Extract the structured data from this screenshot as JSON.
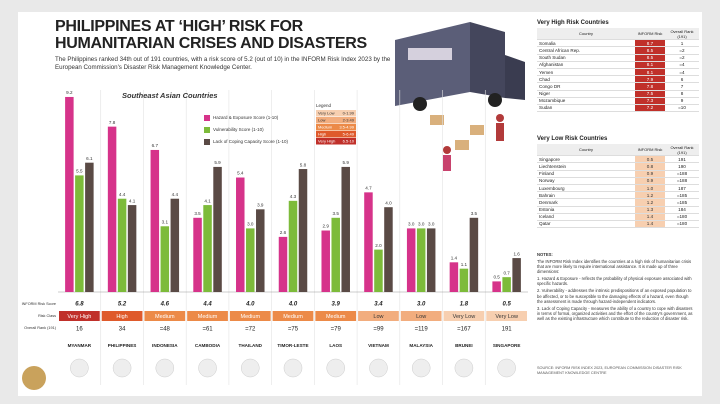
{
  "title_lines": [
    "PHILIPPINES AT ‘HIGH’ RISK FOR",
    "HUMANITARIAN CRISES AND DISASTERS"
  ],
  "subtitle": "The Philippines ranked 34th out of 191 countries, with a risk score of 5.2 (out of 10) in the INFORM Risk Index 2023 by the European Commission's Disaster Risk Management Knowledge Center.",
  "chart_data": {
    "type": "bar",
    "title": "Southeast Asian Countries",
    "categories": [
      "MYANMAR",
      "PHILIPPINES",
      "INDONESIA",
      "CAMBODIA",
      "THAILAND",
      "TIMOR-LESTE",
      "LAOS",
      "VIETNAM",
      "MALAYSIA",
      "BRUNEI",
      "SINGAPORE"
    ],
    "ylim": [
      0,
      10
    ],
    "series": [
      {
        "name": "Hazard & Exposure Score (1-10)",
        "color": "#d6338a",
        "values": [
          9.2,
          7.8,
          6.7,
          3.5,
          5.4,
          2.6,
          2.9,
          4.7,
          3.0,
          1.4,
          0.5
        ],
        "value_labels": [
          "9.2",
          "7.8",
          "6.7",
          "3.5",
          "5.4",
          "2.6",
          "2.9",
          "4.7",
          "3.0",
          "1.4",
          "0.5"
        ]
      },
      {
        "name": "Vulnerability Score (1-10)",
        "color": "#7dbb3a",
        "values": [
          5.5,
          4.4,
          3.1,
          4.1,
          3.0,
          4.3,
          3.5,
          2.0,
          3.0,
          1.1,
          0.7
        ],
        "value_labels": [
          "5.5",
          "4.4",
          "3.1",
          "4.1",
          "3.0",
          "4.3",
          "3.5",
          "2.0",
          "3.0",
          "1.1",
          "0.7"
        ]
      },
      {
        "name": "Lack of Coping Capacity Score (1-10)",
        "color": "#5a4a45",
        "values": [
          6.1,
          4.1,
          4.4,
          5.9,
          3.9,
          5.8,
          5.9,
          4.0,
          3.0,
          3.5,
          1.6
        ],
        "value_labels": [
          "6.1",
          "4.1",
          "4.4",
          "5.9",
          "3.9",
          "5.8",
          "5.9",
          "4.0",
          "3.0",
          "3.5",
          "1.6"
        ]
      }
    ],
    "row_labels": [
      "INFORM Risk Score",
      "Risk Class",
      "Overall Rank (191)"
    ],
    "inform_scores": [
      "6.8",
      "5.2",
      "4.6",
      "4.4",
      "4.0",
      "4.0",
      "3.9",
      "3.4",
      "3.0",
      "1.8",
      "0.5"
    ],
    "risk_class": [
      "Very High",
      "High",
      "Medium",
      "Medium",
      "Medium",
      "Medium",
      "Medium",
      "Low",
      "Low",
      "Very Low",
      "Very Low"
    ],
    "ranks": [
      "16",
      "34",
      "=48",
      "=61",
      "=72",
      "=75",
      "=79",
      "=99",
      "=119",
      "=167",
      "191"
    ],
    "legend": {
      "title": "Legend",
      "items": [
        {
          "label": "Very Low",
          "range": "0-1.99",
          "color": "#f7cfb0"
        },
        {
          "label": "Low",
          "range": "2-3.49",
          "color": "#f2ad7e"
        },
        {
          "label": "Medium",
          "range": "3.5-4.99",
          "color": "#ec8a48"
        },
        {
          "label": "High",
          "range": "5-6.49",
          "color": "#df5a2b"
        },
        {
          "label": "Very High",
          "range": "6.5-10",
          "color": "#c0302a"
        }
      ]
    }
  },
  "very_high_table": {
    "title": "Very High Risk Countries",
    "columns": [
      "Country",
      "INFORM Risk",
      "Overall Rank (191)"
    ],
    "rows": [
      [
        "Somalia",
        "8.7",
        "1"
      ],
      [
        "Central African Rep.",
        "8.5",
        "=2"
      ],
      [
        "South Sudan",
        "8.5",
        "=2"
      ],
      [
        "Afghanistan",
        "8.1",
        "=4"
      ],
      [
        "Yemen",
        "8.1",
        "=4"
      ],
      [
        "Chad",
        "7.9",
        "6"
      ],
      [
        "Congo DR",
        "7.8",
        "7"
      ],
      [
        "Niger",
        "7.5",
        "8"
      ],
      [
        "Mozambique",
        "7.3",
        "9"
      ],
      [
        "Sudan",
        "7.2",
        "=10"
      ]
    ]
  },
  "very_low_table": {
    "title": "Very Low Risk Countries",
    "columns": [
      "Country",
      "INFORM Risk",
      "Overall Rank (191)"
    ],
    "rows": [
      [
        "Singapore",
        "0.5",
        "191"
      ],
      [
        "Liechtenstein",
        "0.8",
        "190"
      ],
      [
        "Finland",
        "0.9",
        "=188"
      ],
      [
        "Norway",
        "0.9",
        "=188"
      ],
      [
        "Luxembourg",
        "1.0",
        "187"
      ],
      [
        "Bahrain",
        "1.2",
        "=185"
      ],
      [
        "Denmark",
        "1.2",
        "=185"
      ],
      [
        "Estonia",
        "1.3",
        "184"
      ],
      [
        "Iceland",
        "1.4",
        "=180"
      ],
      [
        "Qatar",
        "1.4",
        "=180"
      ]
    ]
  },
  "notes": {
    "title": "NOTES:",
    "items": [
      "The INFORM Risk Index identifies the countries at a high risk of humanitarian crisis that are more likely to require international assistance. It is made up of three dimensions:",
      "1. Hazard & Exposure - reflects the probability of physical exposure associated with specific hazards.",
      "2. Vulnerability - addresses the intrinsic predispositions of an exposed population to be affected, or to be susceptible to the damaging effects of a hazard, even though the assessment is made through hazard-independent indicators.",
      "3. Lack of Coping Capacity - measures the ability of a country to cope with disasters in terms of formal, organized activities and the effort of the country's government, as well as the existing infrastructure which contribute to the reduction of disaster risk."
    ]
  },
  "source": "SOURCE: INFORM RISK INDEX 2023, EUROPEAN COMMISSION DISASTER RISK MANAGEMENT KNOWLEDGE CENTRE"
}
